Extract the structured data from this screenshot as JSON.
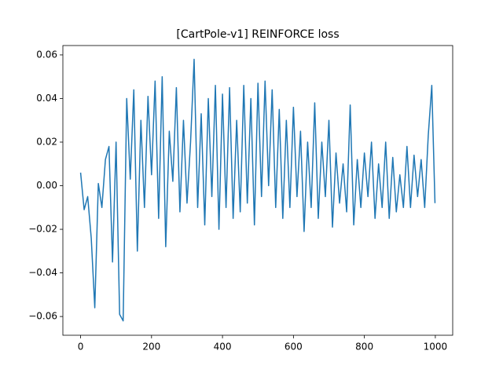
{
  "chart_data": {
    "type": "line",
    "title": "[CartPole-v1] REINFORCE loss",
    "x": [
      0,
      10,
      20,
      30,
      40,
      50,
      60,
      70,
      80,
      90,
      100,
      110,
      120,
      130,
      140,
      150,
      160,
      170,
      180,
      190,
      200,
      210,
      220,
      230,
      240,
      250,
      260,
      270,
      280,
      290,
      300,
      310,
      320,
      330,
      340,
      350,
      360,
      370,
      380,
      390,
      400,
      410,
      420,
      430,
      440,
      450,
      460,
      470,
      480,
      490,
      500,
      510,
      520,
      530,
      540,
      550,
      560,
      570,
      580,
      590,
      600,
      610,
      620,
      630,
      640,
      650,
      660,
      670,
      680,
      690,
      700,
      710,
      720,
      730,
      740,
      750,
      760,
      770,
      780,
      790,
      800,
      810,
      820,
      830,
      840,
      850,
      860,
      870,
      880,
      890,
      900,
      910,
      920,
      930,
      940,
      950,
      960,
      970,
      980,
      990,
      999
    ],
    "series": [
      {
        "name": "loss",
        "color": "#1f77b4",
        "values": [
          0.006,
          -0.011,
          -0.005,
          -0.024,
          -0.056,
          0.001,
          -0.01,
          0.012,
          0.018,
          -0.035,
          0.02,
          -0.059,
          -0.062,
          0.04,
          0.003,
          0.044,
          -0.03,
          0.03,
          -0.01,
          0.041,
          0.005,
          0.048,
          -0.015,
          0.05,
          -0.028,
          0.025,
          0.002,
          0.045,
          -0.012,
          0.03,
          -0.008,
          0.02,
          0.058,
          -0.01,
          0.033,
          -0.018,
          0.04,
          -0.005,
          0.046,
          -0.02,
          0.042,
          -0.01,
          0.045,
          -0.015,
          0.03,
          -0.012,
          0.046,
          -0.008,
          0.04,
          -0.018,
          0.047,
          -0.005,
          0.048,
          0.0,
          0.044,
          -0.01,
          0.035,
          -0.015,
          0.03,
          -0.01,
          0.036,
          -0.005,
          0.025,
          -0.021,
          0.02,
          -0.01,
          0.038,
          -0.015,
          0.02,
          -0.005,
          0.03,
          -0.019,
          0.015,
          -0.008,
          0.01,
          -0.012,
          0.037,
          -0.018,
          0.012,
          -0.01,
          0.015,
          -0.005,
          0.02,
          -0.015,
          0.01,
          -0.01,
          0.02,
          -0.015,
          0.013,
          -0.012,
          0.005,
          -0.01,
          0.018,
          -0.01,
          0.014,
          -0.005,
          0.012,
          -0.01,
          0.023,
          0.046,
          -0.008
        ]
      }
    ],
    "xlim": [
      -49.95,
      1048.95
    ],
    "ylim": [
      -0.0686,
      0.0643
    ],
    "xticks": [
      0,
      200,
      400,
      600,
      800,
      1000
    ],
    "yticks": [
      {
        "value": -0.06,
        "label": "−0.06"
      },
      {
        "value": -0.04,
        "label": "−0.04"
      },
      {
        "value": -0.02,
        "label": "−0.02"
      },
      {
        "value": 0,
        "label": "0.00"
      },
      {
        "value": 0.02,
        "label": "0.02"
      },
      {
        "value": 0.04,
        "label": "0.04"
      },
      {
        "value": 0.06,
        "label": "0.06"
      }
    ]
  }
}
